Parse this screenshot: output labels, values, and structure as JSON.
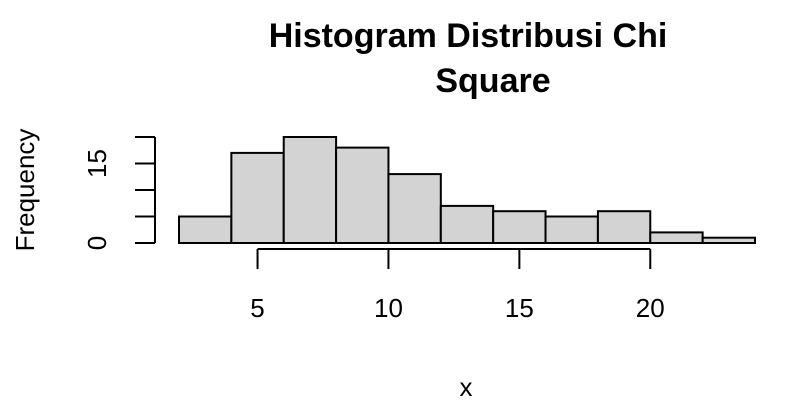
{
  "chart_data": {
    "type": "bar",
    "title_lines": [
      "Histogram Distribusi Chi",
      "Square"
    ],
    "xlabel": "x",
    "ylabel": "Frequency",
    "bins": [
      {
        "x0": 2,
        "x1": 4,
        "count": 5
      },
      {
        "x0": 4,
        "x1": 6,
        "count": 17
      },
      {
        "x0": 6,
        "x1": 8,
        "count": 20
      },
      {
        "x0": 8,
        "x1": 10,
        "count": 18
      },
      {
        "x0": 10,
        "x1": 12,
        "count": 13
      },
      {
        "x0": 12,
        "x1": 14,
        "count": 7
      },
      {
        "x0": 14,
        "x1": 16,
        "count": 6
      },
      {
        "x0": 16,
        "x1": 18,
        "count": 5
      },
      {
        "x0": 18,
        "x1": 20,
        "count": 6
      },
      {
        "x0": 20,
        "x1": 22,
        "count": 2
      },
      {
        "x0": 22,
        "x1": 24,
        "count": 1
      }
    ],
    "xlim": [
      2,
      24
    ],
    "ylim": [
      0,
      20
    ],
    "x_ticks": [
      5,
      10,
      15,
      20
    ],
    "x_tick_labels": [
      "5",
      "10",
      "15",
      "20"
    ],
    "y_ticks": [
      0,
      5,
      10,
      15,
      20
    ],
    "y_tick_labels": {
      "0": "0",
      "15": "15"
    },
    "bar_fill": "#d3d3d3",
    "bar_stroke": "#000000",
    "grid": false,
    "legend": "none"
  }
}
